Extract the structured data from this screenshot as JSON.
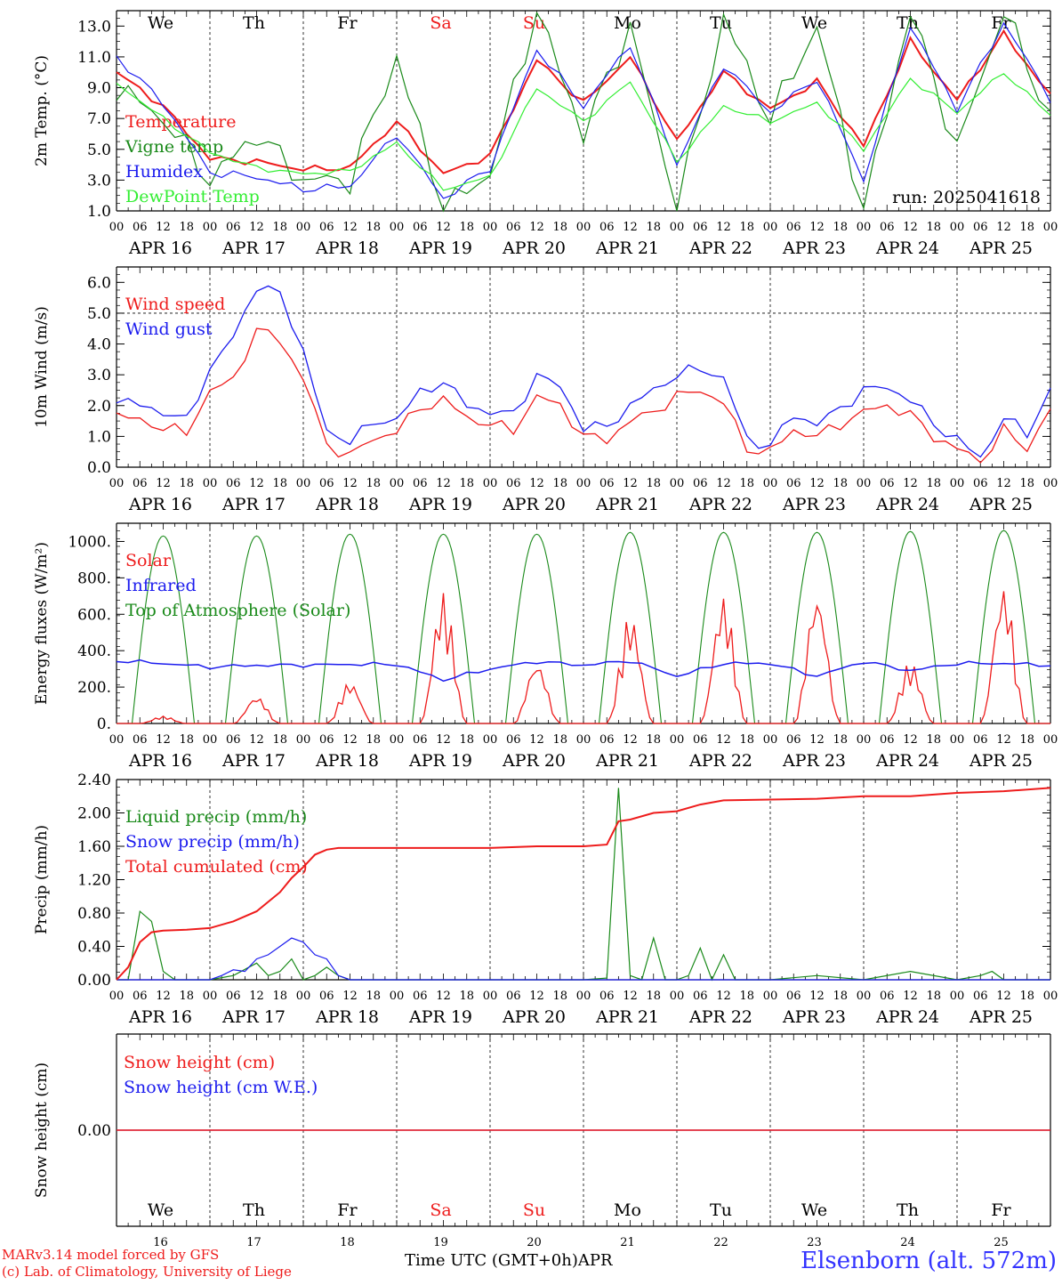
{
  "colors": {
    "red": "#ee1c1c",
    "green": "#1a8a1a",
    "blue": "#1c1cee",
    "lightgreen": "#33ee33",
    "axis": "#000000",
    "location": "#3333ff"
  },
  "x_axis": {
    "hour_labels": [
      "00",
      "06",
      "12",
      "18"
    ],
    "end_label": "00",
    "dates": [
      "APR 16",
      "APR 17",
      "APR 18",
      "APR 19",
      "APR 20",
      "APR 21",
      "APR 22",
      "APR 23",
      "APR 24",
      "APR 25"
    ],
    "weekdays": [
      "We",
      "Th",
      "Fr",
      "Sa",
      "Su",
      "Mo",
      "Tu",
      "We",
      "Th",
      "Fr"
    ],
    "weekday_colors": [
      "#000000",
      "#000000",
      "#000000",
      "#ee1c1c",
      "#ee1c1c",
      "#000000",
      "#000000",
      "#000000",
      "#000000",
      "#000000"
    ],
    "day_numbers": [
      "16",
      "17",
      "18",
      "19",
      "20",
      "21",
      "22",
      "23",
      "24",
      "25"
    ],
    "title": "Time UTC (GMT+0h)",
    "month": "APR"
  },
  "footer": {
    "credit_line1": "MARv3.14 model forced by GFS",
    "credit_line2": "(c) Lab. of Climatology, University of Liege",
    "location": "Elsenborn (alt. 572m)"
  },
  "chart_data": [
    {
      "type": "line",
      "ylabel": "2m Temp. (°C)",
      "ylim": [
        1.0,
        14.0
      ],
      "yticks": [
        "1.0",
        "3.0",
        "5.0",
        "7.0",
        "9.0",
        "11.0",
        "13.0"
      ],
      "annotation": "run: 2025041618",
      "x_hours": [
        0,
        12,
        24,
        36,
        48,
        60,
        72,
        84,
        96,
        108,
        120,
        132,
        144,
        156,
        168,
        180,
        192,
        204,
        216,
        228,
        240
      ],
      "series": [
        {
          "name": "Temperature",
          "color": "#ee1c1c",
          "values": [
            10.0,
            7.8,
            4.4,
            4.2,
            3.7,
            3.8,
            6.8,
            3.4,
            4.6,
            10.8,
            8.0,
            11.0,
            5.5,
            10.0,
            7.6,
            9.4,
            5.2,
            12.0,
            8.2,
            12.5,
            8.5
          ]
        },
        {
          "name": "Vigne temp",
          "color": "#1a8a1a",
          "values": [
            9.0,
            7.0,
            3.0,
            6.0,
            3.0,
            3.0,
            11.0,
            1.0,
            3.5,
            14.0,
            6.0,
            13.0,
            1.0,
            13.5,
            7.0,
            13.0,
            1.0,
            14.0,
            5.0,
            14.0,
            7.0
          ]
        },
        {
          "name": "Humidex",
          "color": "#1c1cee",
          "values": [
            11.0,
            8.0,
            3.5,
            3.2,
            2.4,
            2.6,
            6.0,
            1.8,
            3.8,
            11.5,
            7.8,
            11.8,
            4.0,
            10.5,
            7.4,
            9.6,
            3.0,
            13.0,
            7.6,
            13.2,
            8.3
          ]
        },
        {
          "name": "DewPoint Temp",
          "color": "#33ee33",
          "values": [
            9.3,
            7.0,
            4.8,
            3.8,
            3.4,
            3.6,
            5.4,
            2.4,
            3.2,
            9.0,
            6.8,
            9.4,
            4.2,
            7.8,
            6.8,
            8.0,
            5.0,
            9.6,
            7.4,
            10.0,
            7.2
          ]
        }
      ]
    },
    {
      "type": "line",
      "ylabel": "10m Wind (m/s)",
      "ylim": [
        0.0,
        6.5
      ],
      "yticks": [
        "0.0",
        "1.0",
        "2.0",
        "3.0",
        "4.0",
        "5.0",
        "6.0"
      ],
      "x_hours": [
        0,
        6,
        12,
        18,
        24,
        30,
        36,
        42,
        48,
        54,
        60,
        66,
        72,
        78,
        84,
        90,
        96,
        102,
        108,
        114,
        120,
        126,
        132,
        138,
        144,
        150,
        156,
        162,
        168,
        174,
        180,
        186,
        192,
        198,
        204,
        210,
        216,
        222,
        228,
        234,
        240
      ],
      "series": [
        {
          "name": "Wind speed",
          "color": "#ee1c1c",
          "values": [
            1.7,
            1.5,
            1.3,
            1.1,
            2.5,
            2.8,
            4.5,
            4.1,
            2.9,
            0.7,
            0.4,
            0.9,
            1.2,
            1.9,
            2.2,
            1.6,
            1.4,
            1.2,
            2.3,
            2.0,
            1.0,
            0.9,
            1.5,
            1.8,
            2.3,
            2.5,
            2.1,
            0.6,
            0.5,
            1.2,
            1.0,
            1.4,
            1.8,
            2.0,
            1.7,
            1.0,
            0.6,
            0.2,
            1.2,
            0.6,
            1.9
          ]
        },
        {
          "name": "Wind gust",
          "color": "#1c1cee",
          "values": [
            2.2,
            2.0,
            1.8,
            1.5,
            3.2,
            4.2,
            5.9,
            5.6,
            3.8,
            1.1,
            0.9,
            1.4,
            1.6,
            2.4,
            2.8,
            2.0,
            1.8,
            1.7,
            3.0,
            2.6,
            1.3,
            1.3,
            2.0,
            2.5,
            3.0,
            3.2,
            2.9,
            0.9,
            0.7,
            1.7,
            1.4,
            1.9,
            2.5,
            2.6,
            2.2,
            1.4,
            0.9,
            0.3,
            1.6,
            1.1,
            2.5
          ]
        }
      ],
      "reference_line": 5.0
    },
    {
      "type": "line",
      "ylabel": "Energy fluxes (W/m²)",
      "ylim": [
        0,
        1100
      ],
      "yticks": [
        "0.",
        "200.",
        "400.",
        "600.",
        "800.",
        "1000."
      ],
      "series": [
        {
          "name": "Solar",
          "color": "#ee1c1c",
          "peaks": [
            40,
            150,
            230,
            720,
            340,
            600,
            700,
            720,
            340,
            760
          ]
        },
        {
          "name": "Infrared",
          "color": "#1c1cee",
          "x_hours": [
            0,
            12,
            24,
            36,
            48,
            60,
            72,
            84,
            96,
            108,
            120,
            132,
            144,
            156,
            168,
            180,
            192,
            204,
            216,
            228,
            240
          ],
          "values": [
            345,
            330,
            310,
            320,
            320,
            325,
            325,
            240,
            300,
            340,
            320,
            345,
            260,
            330,
            330,
            260,
            340,
            290,
            330,
            330,
            320
          ]
        },
        {
          "name": "Top of Atmosphere (Solar)",
          "color": "#1a8a1a",
          "peaks": [
            1030,
            1030,
            1040,
            1040,
            1040,
            1050,
            1050,
            1050,
            1055,
            1060
          ]
        }
      ]
    },
    {
      "type": "line",
      "ylabel": "Precip (mm/h)",
      "ylim": [
        0.0,
        2.4
      ],
      "yticks": [
        "0.00",
        "0.40",
        "0.80",
        "1.20",
        "1.60",
        "2.00",
        "2.40"
      ],
      "series": [
        {
          "name": "Liquid precip (mm/h)",
          "color": "#1a8a1a",
          "x_hours": [
            0,
            3,
            6,
            9,
            12,
            15,
            18,
            21,
            24,
            30,
            36,
            39,
            42,
            45,
            48,
            51,
            54,
            57,
            60,
            66,
            72,
            84,
            96,
            108,
            120,
            126,
            129,
            132,
            135,
            138,
            141,
            144,
            147,
            150,
            153,
            156,
            159,
            162,
            165,
            168,
            180,
            192,
            204,
            216,
            222,
            225,
            228,
            240
          ],
          "values": [
            0,
            0,
            0.82,
            0.7,
            0.1,
            0,
            0,
            0,
            0,
            0.05,
            0.2,
            0.05,
            0.1,
            0.25,
            0,
            0.05,
            0.15,
            0.05,
            0,
            0,
            0,
            0,
            0,
            0,
            0,
            0.02,
            2.3,
            0.05,
            0,
            0.5,
            0,
            0,
            0.05,
            0.38,
            0,
            0.3,
            0,
            0,
            0,
            0,
            0.05,
            0,
            0.1,
            0,
            0.05,
            0.1,
            0,
            0
          ]
        },
        {
          "name": "Snow precip (mm/h)",
          "color": "#1c1cee",
          "x_hours": [
            0,
            24,
            27,
            30,
            33,
            36,
            39,
            42,
            45,
            48,
            51,
            54,
            57,
            60,
            240
          ],
          "values": [
            0,
            0,
            0.05,
            0.12,
            0.1,
            0.25,
            0.3,
            0.4,
            0.5,
            0.45,
            0.3,
            0.25,
            0.05,
            0,
            0
          ]
        },
        {
          "name": "Total cumulated (cm)",
          "color": "#ee1c1c",
          "x_hours": [
            0,
            3,
            6,
            9,
            12,
            18,
            24,
            30,
            36,
            42,
            45,
            48,
            51,
            54,
            57,
            60,
            72,
            84,
            96,
            108,
            120,
            126,
            129,
            132,
            138,
            144,
            150,
            156,
            168,
            180,
            192,
            204,
            216,
            228,
            240
          ],
          "values": [
            0,
            0.15,
            0.45,
            0.57,
            0.59,
            0.6,
            0.62,
            0.7,
            0.82,
            1.05,
            1.22,
            1.35,
            1.5,
            1.56,
            1.58,
            1.58,
            1.58,
            1.58,
            1.58,
            1.6,
            1.6,
            1.62,
            1.9,
            1.92,
            2.0,
            2.02,
            2.1,
            2.15,
            2.16,
            2.17,
            2.2,
            2.2,
            2.24,
            2.26,
            2.3
          ]
        }
      ]
    },
    {
      "type": "line",
      "ylabel": "Snow height (cm)",
      "ylim": [
        -1,
        1
      ],
      "yticks": [
        "0.00"
      ],
      "series": [
        {
          "name": "Snow height (cm)",
          "color": "#ee1c1c",
          "values": [
            0,
            0
          ]
        },
        {
          "name": "Snow height (cm W.E.)",
          "color": "#1c1cee",
          "values": [
            0,
            0
          ]
        }
      ]
    }
  ]
}
